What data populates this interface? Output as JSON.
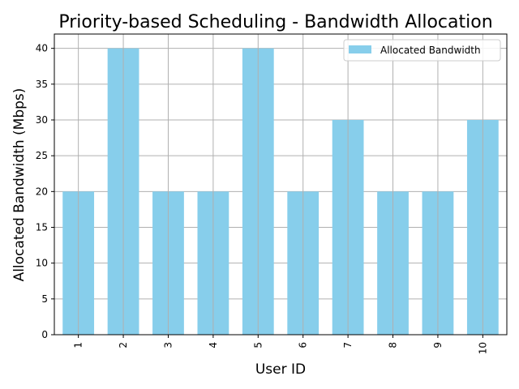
{
  "chart_data": {
    "type": "bar",
    "title": "Priority-based Scheduling - Bandwidth Allocation",
    "xlabel": "User ID",
    "ylabel": "Allocated Bandwidth (Mbps)",
    "categories": [
      "1",
      "2",
      "3",
      "4",
      "5",
      "6",
      "7",
      "8",
      "9",
      "10"
    ],
    "series": [
      {
        "name": "Allocated Bandwidth",
        "values": [
          20,
          40,
          20,
          20,
          40,
          20,
          30,
          20,
          20,
          30
        ]
      }
    ],
    "ylim": [
      0,
      42
    ],
    "yticks": [
      0,
      5,
      10,
      15,
      20,
      25,
      30,
      35,
      40
    ],
    "grid": true,
    "legend_position": "top-right",
    "bar_color": "#87ceeb",
    "grid_color": "#b0b0b0"
  }
}
